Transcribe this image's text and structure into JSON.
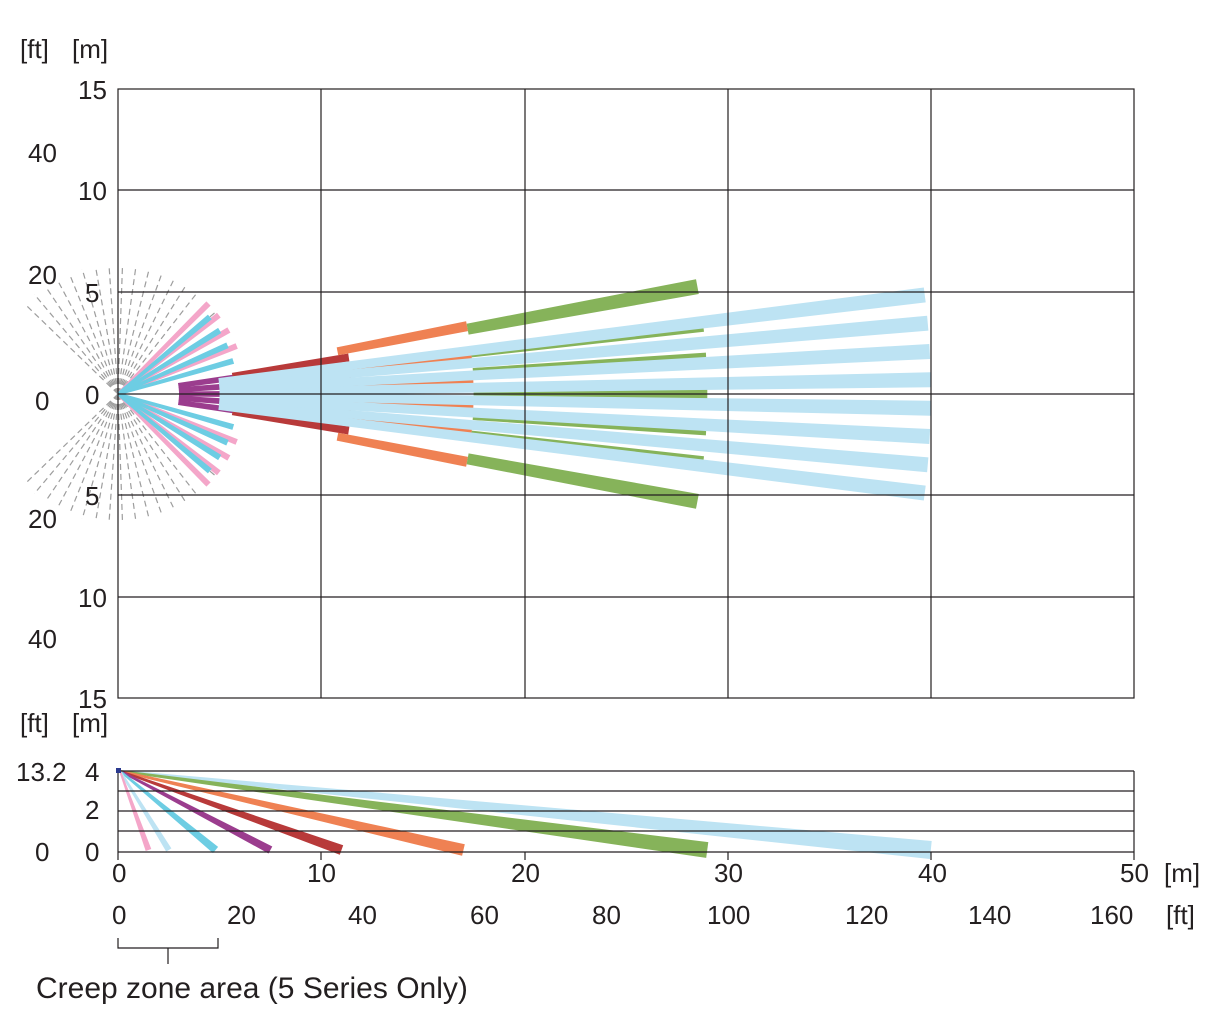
{
  "top_view": {
    "unit_ft": "[ft]",
    "unit_m": "[m]",
    "m_ticks": [
      "15",
      "10",
      "5",
      "0",
      "5",
      "10",
      "15"
    ],
    "ft_ticks": [
      "40",
      "20",
      "0",
      "20",
      "40"
    ],
    "grid_x_range_m": [
      0,
      50
    ],
    "grid_y_range_m": [
      -15,
      15
    ]
  },
  "side_view": {
    "unit_ft": "[ft]",
    "unit_m": "[m]",
    "height_m_ticks": [
      "4",
      "2",
      "0"
    ],
    "height_ft_ticks": [
      "13.2",
      "0"
    ],
    "mount_height_m": 4
  },
  "x_axis": {
    "m_ticks": [
      "0",
      "10",
      "20",
      "30",
      "40",
      "50"
    ],
    "m_unit": "[m]",
    "ft_ticks": [
      "0",
      "20",
      "40",
      "60",
      "80",
      "100",
      "120",
      "140",
      "160"
    ],
    "ft_unit": "[ft]"
  },
  "caption": "Creep zone area (5 Series Only)",
  "colors": {
    "grid": "#231f20",
    "creep": "#9d9d9d",
    "pink": "#f4a6c9",
    "cyan": "#6dcde3",
    "purple": "#9b3d8e",
    "red": "#b83a3a",
    "orange": "#ef8153",
    "green": "#86b35a",
    "lightblue": "#bde3f3"
  },
  "zones_top": [
    {
      "name": "pink",
      "color": "pink",
      "angles_deg": [
        -45,
        -38,
        -30,
        -22,
        22,
        30,
        38,
        45
      ],
      "range_m": [
        0,
        6.3
      ]
    },
    {
      "name": "cyan",
      "color": "cyan",
      "angles_deg": [
        -40,
        -32,
        -24,
        -16,
        16,
        24,
        32,
        40
      ],
      "range_m": [
        0,
        5.9
      ]
    },
    {
      "name": "purple",
      "color": "purple",
      "angles_deg": [
        -8,
        -4,
        0,
        4,
        8
      ],
      "range_m": [
        3,
        8
      ]
    },
    {
      "name": "red",
      "color": "red",
      "angles_deg": [
        -9,
        -4.5,
        0,
        4.5,
        9
      ],
      "range_m": [
        5.7,
        11.5
      ]
    },
    {
      "name": "orange",
      "color": "orange",
      "angles_deg": [
        -11,
        -6.5,
        -2.2,
        2.2,
        6.5,
        11
      ],
      "range_m": [
        11,
        17.5
      ]
    },
    {
      "name": "green",
      "color": "green",
      "angles_deg": [
        -10.5,
        -6.8,
        -3.3,
        0,
        3.3,
        6.8,
        10.5
      ],
      "range_m": [
        17.5,
        29
      ]
    },
    {
      "name": "lightblue",
      "color": "lightblue",
      "angles_deg": [
        -7,
        -5,
        -3,
        -1,
        1,
        3,
        5,
        7
      ],
      "range_m": [
        5,
        40
      ]
    }
  ],
  "zones_side": [
    {
      "name": "pink",
      "color": "pink",
      "ground_m": 1.5
    },
    {
      "name": "lightblue-near",
      "color": "lightblue",
      "ground_m": 2.5
    },
    {
      "name": "cyan",
      "color": "cyan",
      "ground_m": 4.8
    },
    {
      "name": "purple",
      "color": "purple",
      "ground_m": 7.5
    },
    {
      "name": "red",
      "color": "red",
      "ground_m": 11
    },
    {
      "name": "orange",
      "color": "orange",
      "ground_m": 17
    },
    {
      "name": "green",
      "color": "green",
      "ground_m": 29
    },
    {
      "name": "lightblue-far",
      "color": "lightblue",
      "ground_m": 40
    }
  ]
}
